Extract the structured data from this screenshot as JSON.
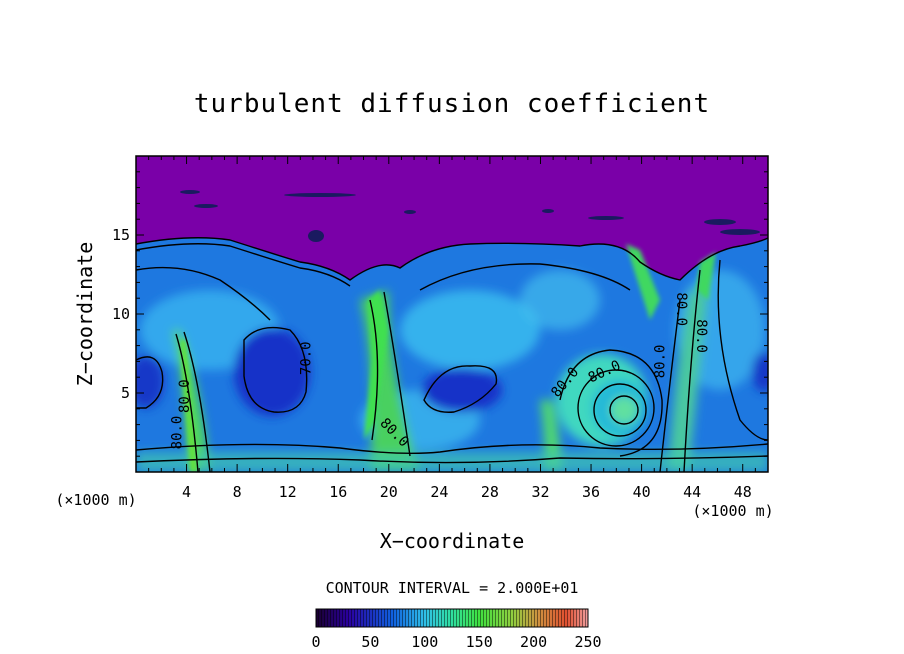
{
  "chart_data": {
    "type": "heatmap",
    "title": "turbulent diffusion coefficient",
    "xlabel": "X−coordinate",
    "ylabel": "Z−coordinate",
    "x_unit_left": "(×1000 m)",
    "x_unit_right": "(×1000 m)",
    "xlim": [
      0,
      50
    ],
    "ylim": [
      0,
      20
    ],
    "x_ticks": [
      4,
      8,
      12,
      16,
      20,
      24,
      28,
      32,
      36,
      40,
      44,
      48
    ],
    "x_minor_step": 1,
    "y_ticks": [
      5,
      10,
      15
    ],
    "y_minor_step": 1,
    "contour_interval_text": "CONTOUR INTERVAL = 2.000E+01",
    "colorbar": {
      "min": 0,
      "max": 250,
      "ticks": [
        0,
        50,
        100,
        150,
        200,
        250
      ]
    },
    "contour_labels": [
      {
        "text": "80.0",
        "x": 4.2,
        "y": 4.8,
        "rotate": -90
      },
      {
        "text": "80.0",
        "x": 3.6,
        "y": 2.5,
        "rotate": -90
      },
      {
        "text": "70.0",
        "x": 13.8,
        "y": 7.2,
        "rotate": -90
      },
      {
        "text": "80.0",
        "x": 20.2,
        "y": 2.3,
        "rotate": 45
      },
      {
        "text": "80.0",
        "x": 34.2,
        "y": 5.5,
        "rotate": -50
      },
      {
        "text": "80.0",
        "x": 37.2,
        "y": 6.1,
        "rotate": -25
      },
      {
        "text": "80.0",
        "x": 41.8,
        "y": 7.0,
        "rotate": -90
      },
      {
        "text": "80.0",
        "x": 42.8,
        "y": 10.3,
        "rotate": 90
      },
      {
        "text": "80.0",
        "x": 44.4,
        "y": 8.6,
        "rotate": 90
      }
    ],
    "field_description_values": {
      "upper_layer_value": 0,
      "boundary_height": 14.5,
      "vortex_cores": [
        {
          "x": 10.5,
          "z": 7.0,
          "value": 25
        },
        {
          "x": 25.5,
          "z": 5.5,
          "value": 25
        },
        {
          "x": 0.8,
          "z": 6.0,
          "value": 30
        },
        {
          "x": 38.5,
          "z": 4.0,
          "value": 140
        },
        {
          "x": 49.5,
          "z": 6.5,
          "value": 35
        }
      ],
      "updrafts": [
        {
          "x": 4.5,
          "value": 150
        },
        {
          "x": 18.5,
          "value": 160
        },
        {
          "x": 33.0,
          "value": 140
        },
        {
          "x": 43.5,
          "value": 130
        }
      ]
    }
  }
}
